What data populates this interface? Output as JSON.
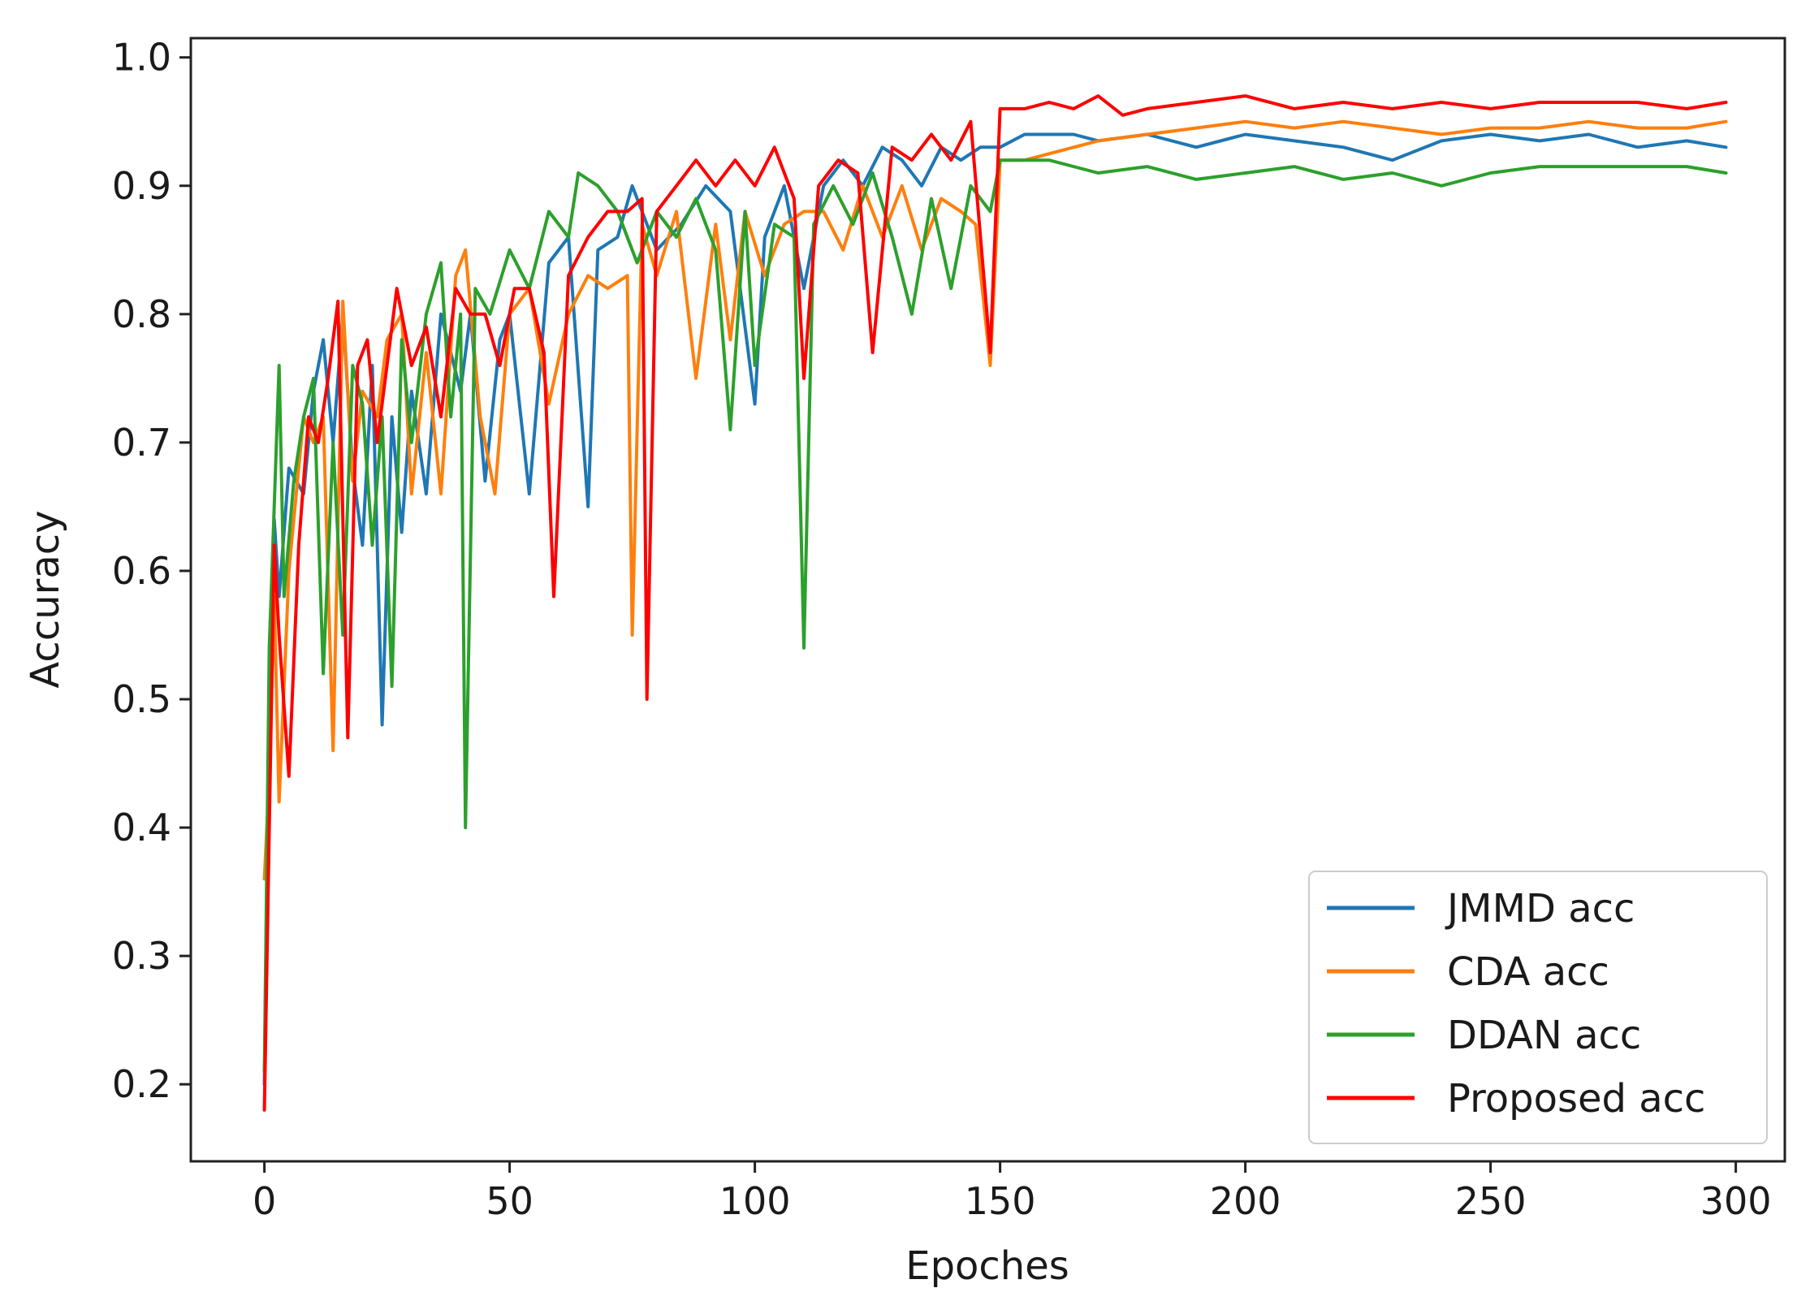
{
  "chart_data": {
    "type": "line",
    "title": "",
    "xlabel": "Epoches",
    "ylabel": "Accuracy",
    "xlim": [
      -15,
      310
    ],
    "ylim": [
      0.14,
      1.015
    ],
    "xticks": [
      0,
      50,
      100,
      150,
      200,
      250,
      300
    ],
    "yticks": [
      0.2,
      0.3,
      0.4,
      0.5,
      0.6,
      0.7,
      0.8,
      0.9,
      1.0
    ],
    "ytick_labels": [
      "0.2",
      "0.3",
      "0.4",
      "0.5",
      "0.6",
      "0.7",
      "0.8",
      "0.9",
      "1.0"
    ],
    "grid": false,
    "legend_position": "lower-right",
    "series": [
      {
        "name": "JMMD acc",
        "color": "#1f77b4",
        "points": [
          [
            0,
            0.2
          ],
          [
            1,
            0.52
          ],
          [
            2,
            0.64
          ],
          [
            3,
            0.58
          ],
          [
            5,
            0.68
          ],
          [
            8,
            0.66
          ],
          [
            10,
            0.74
          ],
          [
            12,
            0.78
          ],
          [
            14,
            0.7
          ],
          [
            16,
            0.8
          ],
          [
            18,
            0.68
          ],
          [
            20,
            0.62
          ],
          [
            22,
            0.76
          ],
          [
            24,
            0.48
          ],
          [
            26,
            0.72
          ],
          [
            28,
            0.63
          ],
          [
            30,
            0.74
          ],
          [
            33,
            0.66
          ],
          [
            36,
            0.8
          ],
          [
            40,
            0.74
          ],
          [
            42,
            0.8
          ],
          [
            45,
            0.67
          ],
          [
            48,
            0.78
          ],
          [
            50,
            0.8
          ],
          [
            54,
            0.66
          ],
          [
            58,
            0.84
          ],
          [
            62,
            0.86
          ],
          [
            66,
            0.65
          ],
          [
            68,
            0.85
          ],
          [
            72,
            0.86
          ],
          [
            75,
            0.9
          ],
          [
            80,
            0.85
          ],
          [
            85,
            0.87
          ],
          [
            90,
            0.9
          ],
          [
            95,
            0.88
          ],
          [
            100,
            0.73
          ],
          [
            102,
            0.86
          ],
          [
            106,
            0.9
          ],
          [
            110,
            0.82
          ],
          [
            114,
            0.9
          ],
          [
            118,
            0.92
          ],
          [
            122,
            0.9
          ],
          [
            126,
            0.93
          ],
          [
            130,
            0.92
          ],
          [
            134,
            0.9
          ],
          [
            138,
            0.93
          ],
          [
            142,
            0.92
          ],
          [
            146,
            0.93
          ],
          [
            150,
            0.93
          ],
          [
            155,
            0.94
          ],
          [
            160,
            0.94
          ],
          [
            165,
            0.94
          ],
          [
            170,
            0.935
          ],
          [
            180,
            0.94
          ],
          [
            190,
            0.93
          ],
          [
            200,
            0.94
          ],
          [
            210,
            0.935
          ],
          [
            220,
            0.93
          ],
          [
            230,
            0.92
          ],
          [
            240,
            0.935
          ],
          [
            250,
            0.94
          ],
          [
            260,
            0.935
          ],
          [
            270,
            0.94
          ],
          [
            280,
            0.93
          ],
          [
            290,
            0.935
          ],
          [
            298,
            0.93
          ]
        ]
      },
      {
        "name": "CDA acc",
        "color": "#ff7f0e",
        "points": [
          [
            0,
            0.36
          ],
          [
            1,
            0.44
          ],
          [
            2,
            0.58
          ],
          [
            3,
            0.42
          ],
          [
            5,
            0.6
          ],
          [
            8,
            0.72
          ],
          [
            10,
            0.7
          ],
          [
            12,
            0.72
          ],
          [
            14,
            0.46
          ],
          [
            16,
            0.81
          ],
          [
            18,
            0.67
          ],
          [
            20,
            0.74
          ],
          [
            23,
            0.72
          ],
          [
            25,
            0.78
          ],
          [
            28,
            0.8
          ],
          [
            30,
            0.66
          ],
          [
            33,
            0.77
          ],
          [
            36,
            0.66
          ],
          [
            39,
            0.83
          ],
          [
            41,
            0.85
          ],
          [
            44,
            0.72
          ],
          [
            47,
            0.66
          ],
          [
            50,
            0.8
          ],
          [
            54,
            0.82
          ],
          [
            58,
            0.73
          ],
          [
            62,
            0.8
          ],
          [
            66,
            0.83
          ],
          [
            70,
            0.82
          ],
          [
            74,
            0.83
          ],
          [
            75,
            0.55
          ],
          [
            77,
            0.87
          ],
          [
            80,
            0.83
          ],
          [
            84,
            0.88
          ],
          [
            88,
            0.75
          ],
          [
            92,
            0.87
          ],
          [
            95,
            0.78
          ],
          [
            98,
            0.88
          ],
          [
            102,
            0.83
          ],
          [
            106,
            0.87
          ],
          [
            110,
            0.88
          ],
          [
            114,
            0.88
          ],
          [
            118,
            0.85
          ],
          [
            122,
            0.9
          ],
          [
            126,
            0.86
          ],
          [
            130,
            0.9
          ],
          [
            134,
            0.85
          ],
          [
            138,
            0.89
          ],
          [
            142,
            0.88
          ],
          [
            145,
            0.87
          ],
          [
            148,
            0.76
          ],
          [
            150,
            0.92
          ],
          [
            155,
            0.92
          ],
          [
            160,
            0.925
          ],
          [
            170,
            0.935
          ],
          [
            180,
            0.94
          ],
          [
            190,
            0.945
          ],
          [
            200,
            0.95
          ],
          [
            210,
            0.945
          ],
          [
            220,
            0.95
          ],
          [
            230,
            0.945
          ],
          [
            240,
            0.94
          ],
          [
            250,
            0.945
          ],
          [
            260,
            0.945
          ],
          [
            270,
            0.95
          ],
          [
            280,
            0.945
          ],
          [
            290,
            0.945
          ],
          [
            298,
            0.95
          ]
        ]
      },
      {
        "name": "DDAN acc",
        "color": "#2ca02c",
        "points": [
          [
            0,
            0.21
          ],
          [
            1,
            0.54
          ],
          [
            2,
            0.65
          ],
          [
            3,
            0.76
          ],
          [
            4,
            0.58
          ],
          [
            6,
            0.67
          ],
          [
            8,
            0.72
          ],
          [
            10,
            0.75
          ],
          [
            12,
            0.52
          ],
          [
            14,
            0.7
          ],
          [
            16,
            0.55
          ],
          [
            18,
            0.76
          ],
          [
            20,
            0.73
          ],
          [
            22,
            0.62
          ],
          [
            24,
            0.72
          ],
          [
            26,
            0.51
          ],
          [
            28,
            0.78
          ],
          [
            30,
            0.7
          ],
          [
            33,
            0.8
          ],
          [
            36,
            0.84
          ],
          [
            38,
            0.72
          ],
          [
            40,
            0.8
          ],
          [
            41,
            0.4
          ],
          [
            43,
            0.82
          ],
          [
            46,
            0.8
          ],
          [
            50,
            0.85
          ],
          [
            54,
            0.82
          ],
          [
            58,
            0.88
          ],
          [
            62,
            0.86
          ],
          [
            64,
            0.91
          ],
          [
            68,
            0.9
          ],
          [
            72,
            0.88
          ],
          [
            76,
            0.84
          ],
          [
            80,
            0.88
          ],
          [
            84,
            0.86
          ],
          [
            88,
            0.89
          ],
          [
            92,
            0.85
          ],
          [
            95,
            0.71
          ],
          [
            98,
            0.88
          ],
          [
            100,
            0.76
          ],
          [
            104,
            0.87
          ],
          [
            108,
            0.86
          ],
          [
            110,
            0.54
          ],
          [
            112,
            0.87
          ],
          [
            116,
            0.9
          ],
          [
            120,
            0.87
          ],
          [
            124,
            0.91
          ],
          [
            128,
            0.86
          ],
          [
            132,
            0.8
          ],
          [
            136,
            0.89
          ],
          [
            140,
            0.82
          ],
          [
            144,
            0.9
          ],
          [
            148,
            0.88
          ],
          [
            150,
            0.92
          ],
          [
            155,
            0.92
          ],
          [
            160,
            0.92
          ],
          [
            170,
            0.91
          ],
          [
            180,
            0.915
          ],
          [
            190,
            0.905
          ],
          [
            200,
            0.91
          ],
          [
            210,
            0.915
          ],
          [
            220,
            0.905
          ],
          [
            230,
            0.91
          ],
          [
            240,
            0.9
          ],
          [
            250,
            0.91
          ],
          [
            260,
            0.915
          ],
          [
            270,
            0.915
          ],
          [
            280,
            0.915
          ],
          [
            290,
            0.915
          ],
          [
            298,
            0.91
          ]
        ]
      },
      {
        "name": "Proposed acc",
        "color": "#ff0000",
        "points": [
          [
            0,
            0.18
          ],
          [
            1,
            0.4
          ],
          [
            2,
            0.62
          ],
          [
            3,
            0.55
          ],
          [
            5,
            0.44
          ],
          [
            7,
            0.62
          ],
          [
            9,
            0.72
          ],
          [
            11,
            0.7
          ],
          [
            13,
            0.75
          ],
          [
            15,
            0.81
          ],
          [
            17,
            0.47
          ],
          [
            19,
            0.76
          ],
          [
            21,
            0.78
          ],
          [
            23,
            0.7
          ],
          [
            25,
            0.76
          ],
          [
            27,
            0.82
          ],
          [
            30,
            0.76
          ],
          [
            33,
            0.79
          ],
          [
            36,
            0.72
          ],
          [
            39,
            0.82
          ],
          [
            42,
            0.8
          ],
          [
            45,
            0.8
          ],
          [
            48,
            0.76
          ],
          [
            51,
            0.82
          ],
          [
            54,
            0.82
          ],
          [
            57,
            0.77
          ],
          [
            59,
            0.58
          ],
          [
            62,
            0.83
          ],
          [
            66,
            0.86
          ],
          [
            70,
            0.88
          ],
          [
            74,
            0.88
          ],
          [
            77,
            0.89
          ],
          [
            78,
            0.5
          ],
          [
            80,
            0.88
          ],
          [
            84,
            0.9
          ],
          [
            88,
            0.92
          ],
          [
            92,
            0.9
          ],
          [
            96,
            0.92
          ],
          [
            100,
            0.9
          ],
          [
            104,
            0.93
          ],
          [
            108,
            0.89
          ],
          [
            110,
            0.75
          ],
          [
            113,
            0.9
          ],
          [
            117,
            0.92
          ],
          [
            121,
            0.91
          ],
          [
            124,
            0.77
          ],
          [
            128,
            0.93
          ],
          [
            132,
            0.92
          ],
          [
            136,
            0.94
          ],
          [
            140,
            0.92
          ],
          [
            144,
            0.95
          ],
          [
            148,
            0.77
          ],
          [
            150,
            0.96
          ],
          [
            155,
            0.96
          ],
          [
            160,
            0.965
          ],
          [
            165,
            0.96
          ],
          [
            170,
            0.97
          ],
          [
            175,
            0.955
          ],
          [
            180,
            0.96
          ],
          [
            190,
            0.965
          ],
          [
            200,
            0.97
          ],
          [
            210,
            0.96
          ],
          [
            220,
            0.965
          ],
          [
            230,
            0.96
          ],
          [
            240,
            0.965
          ],
          [
            250,
            0.96
          ],
          [
            260,
            0.965
          ],
          [
            270,
            0.965
          ],
          [
            280,
            0.965
          ],
          [
            290,
            0.96
          ],
          [
            298,
            0.965
          ]
        ]
      }
    ]
  }
}
